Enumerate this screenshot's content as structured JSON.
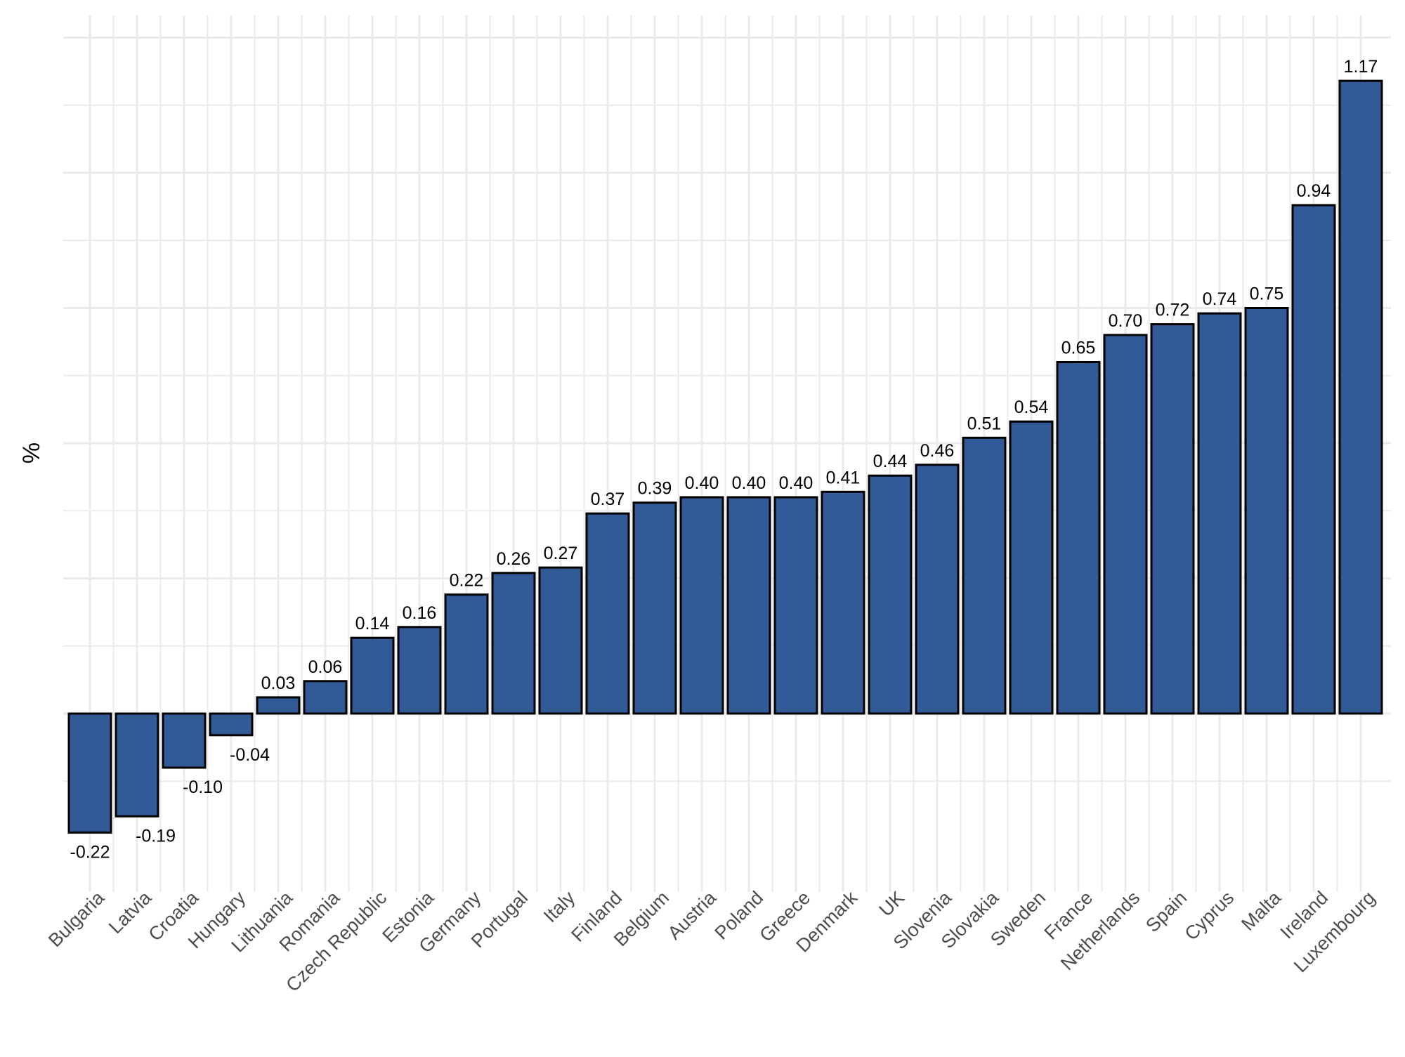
{
  "chart_data": {
    "type": "bar",
    "title": "",
    "xlabel": "",
    "ylabel": "%",
    "ylim": [
      -0.3,
      1.2
    ],
    "grid": true,
    "categories": [
      "Bulgaria",
      "Latvia",
      "Croatia",
      "Hungary",
      "Lithuania",
      "Romania",
      "Czech Republic",
      "Estonia",
      "Germany",
      "Portugal",
      "Italy",
      "Finland",
      "Belgium",
      "Austria",
      "Poland",
      "Greece",
      "Denmark",
      "UK",
      "Slovenia",
      "Slovakia",
      "Sweden",
      "France",
      "Netherlands",
      "Spain",
      "Cyprus",
      "Malta",
      "Ireland",
      "Luxembourg"
    ],
    "values": [
      -0.22,
      -0.19,
      -0.1,
      -0.04,
      0.03,
      0.06,
      0.14,
      0.16,
      0.22,
      0.26,
      0.27,
      0.37,
      0.39,
      0.4,
      0.4,
      0.4,
      0.41,
      0.44,
      0.46,
      0.51,
      0.54,
      0.65,
      0.7,
      0.72,
      0.74,
      0.75,
      0.94,
      1.17
    ],
    "labels": [
      "-0.22",
      "-0.19",
      "-0.10",
      "-0.04",
      "0.03",
      "0.06",
      "0.14",
      "0.16",
      "0.22",
      "0.26",
      "0.27",
      "0.37",
      "0.39",
      "0.40",
      "0.40",
      "0.40",
      "0.41",
      "0.44",
      "0.46",
      "0.51",
      "0.54",
      "0.65",
      "0.70",
      "0.72",
      "0.74",
      "0.75",
      "0.94",
      "1.17"
    ],
    "colors": {
      "bar": "#325a96",
      "bar_outline": "#000000",
      "grid": "#ebebeb"
    }
  }
}
